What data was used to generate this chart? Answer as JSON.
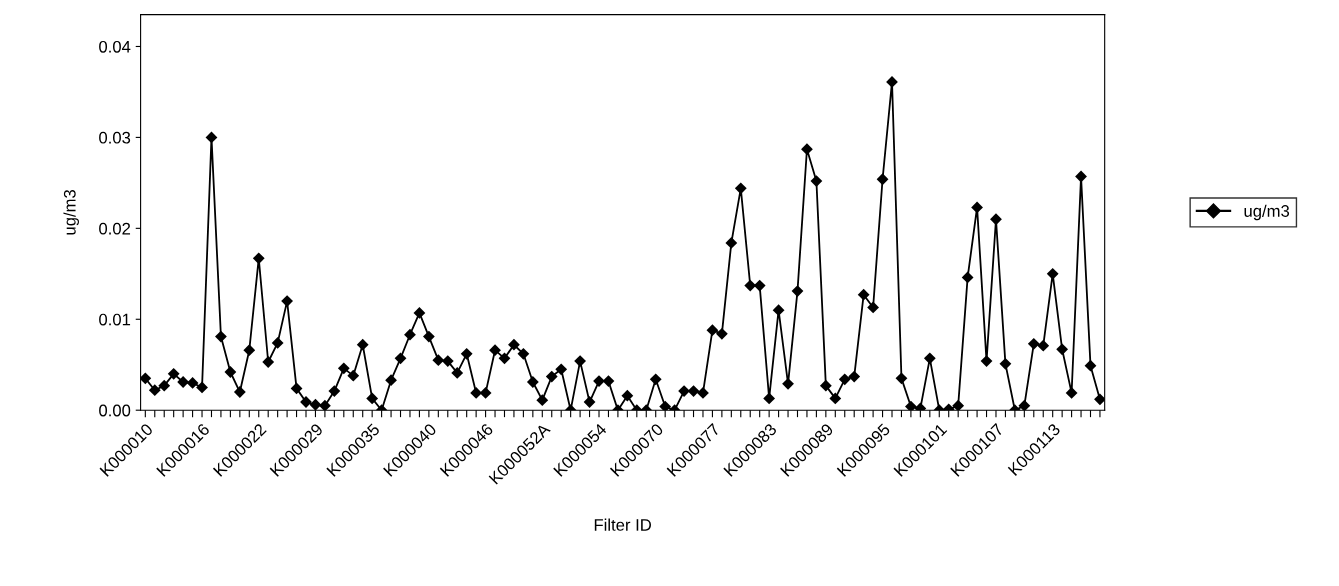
{
  "chart_data": {
    "type": "line",
    "xlabel": "Filter ID",
    "ylabel": "ug/m3",
    "categories": [
      "K000010",
      null,
      null,
      null,
      null,
      null,
      "K000016",
      null,
      null,
      null,
      null,
      null,
      "K000022",
      null,
      null,
      null,
      null,
      null,
      "K000029",
      null,
      null,
      null,
      null,
      null,
      "K000035",
      null,
      null,
      null,
      null,
      null,
      "K000040",
      null,
      null,
      null,
      null,
      null,
      "K000046",
      null,
      null,
      null,
      null,
      null,
      "K000052A",
      null,
      null,
      null,
      null,
      null,
      "K000054",
      null,
      null,
      null,
      null,
      null,
      "K000070",
      null,
      null,
      null,
      null,
      null,
      "K000077",
      null,
      null,
      null,
      null,
      null,
      "K000083",
      null,
      null,
      null,
      null,
      null,
      "K000089",
      null,
      null,
      null,
      null,
      null,
      "K000095",
      null,
      null,
      null,
      null,
      null,
      "K000101",
      null,
      null,
      null,
      null,
      null,
      "K000107",
      null,
      null,
      null,
      null,
      null,
      "K000113",
      null,
      null,
      null,
      null,
      null
    ],
    "series": [
      {
        "name": "ug/m3",
        "color": "#000000",
        "values": [
          0.0035,
          0.0022,
          0.0027,
          0.004,
          0.0031,
          0.003,
          0.0025,
          0.03,
          0.0081,
          0.0042,
          0.002,
          0.0066,
          0.0167,
          0.0053,
          0.0074,
          0.012,
          0.0024,
          0.0009,
          0.0006,
          0.0005,
          0.0021,
          0.0046,
          0.0038,
          0.0072,
          0.0013,
          0.0,
          0.0033,
          0.0057,
          0.0083,
          0.0107,
          0.0081,
          0.0055,
          0.0054,
          0.0041,
          0.0062,
          0.0019,
          0.0019,
          0.0066,
          0.0057,
          0.0072,
          0.0062,
          0.0031,
          0.0011,
          0.0037,
          0.0045,
          0.0,
          0.0054,
          0.0009,
          0.0032,
          0.0032,
          0.0,
          0.0016,
          0.0,
          0.0,
          0.0034,
          0.0004,
          0.0,
          0.0021,
          0.0021,
          0.0019,
          0.0088,
          0.0084,
          0.0184,
          0.0244,
          0.0137,
          0.0137,
          0.0013,
          0.011,
          0.0029,
          0.0131,
          0.0287,
          0.0252,
          0.0027,
          0.0013,
          0.0034,
          0.0037,
          0.0127,
          0.0113,
          0.0254,
          0.0361,
          0.0035,
          0.0004,
          0.0002,
          0.0057,
          0.0,
          0.0001,
          0.0005,
          0.0146,
          0.0223,
          0.0054,
          0.021,
          0.0051,
          0.0,
          0.0005,
          0.0073,
          0.0071,
          0.015,
          0.0067,
          0.0019,
          0.0257,
          0.0049,
          0.0012
        ]
      }
    ],
    "ylim": [
      0,
      0.0435
    ],
    "yticks": [
      {
        "value": 0,
        "label": "0.00"
      },
      {
        "value": 0.01,
        "label": "0.01"
      },
      {
        "value": 0.02,
        "label": "0.02"
      },
      {
        "value": 0.03,
        "label": "0.03"
      },
      {
        "value": 0.04,
        "label": "0.04"
      }
    ],
    "marker": "diamond",
    "line_style": "solid",
    "legend": "right",
    "grid": false
  }
}
